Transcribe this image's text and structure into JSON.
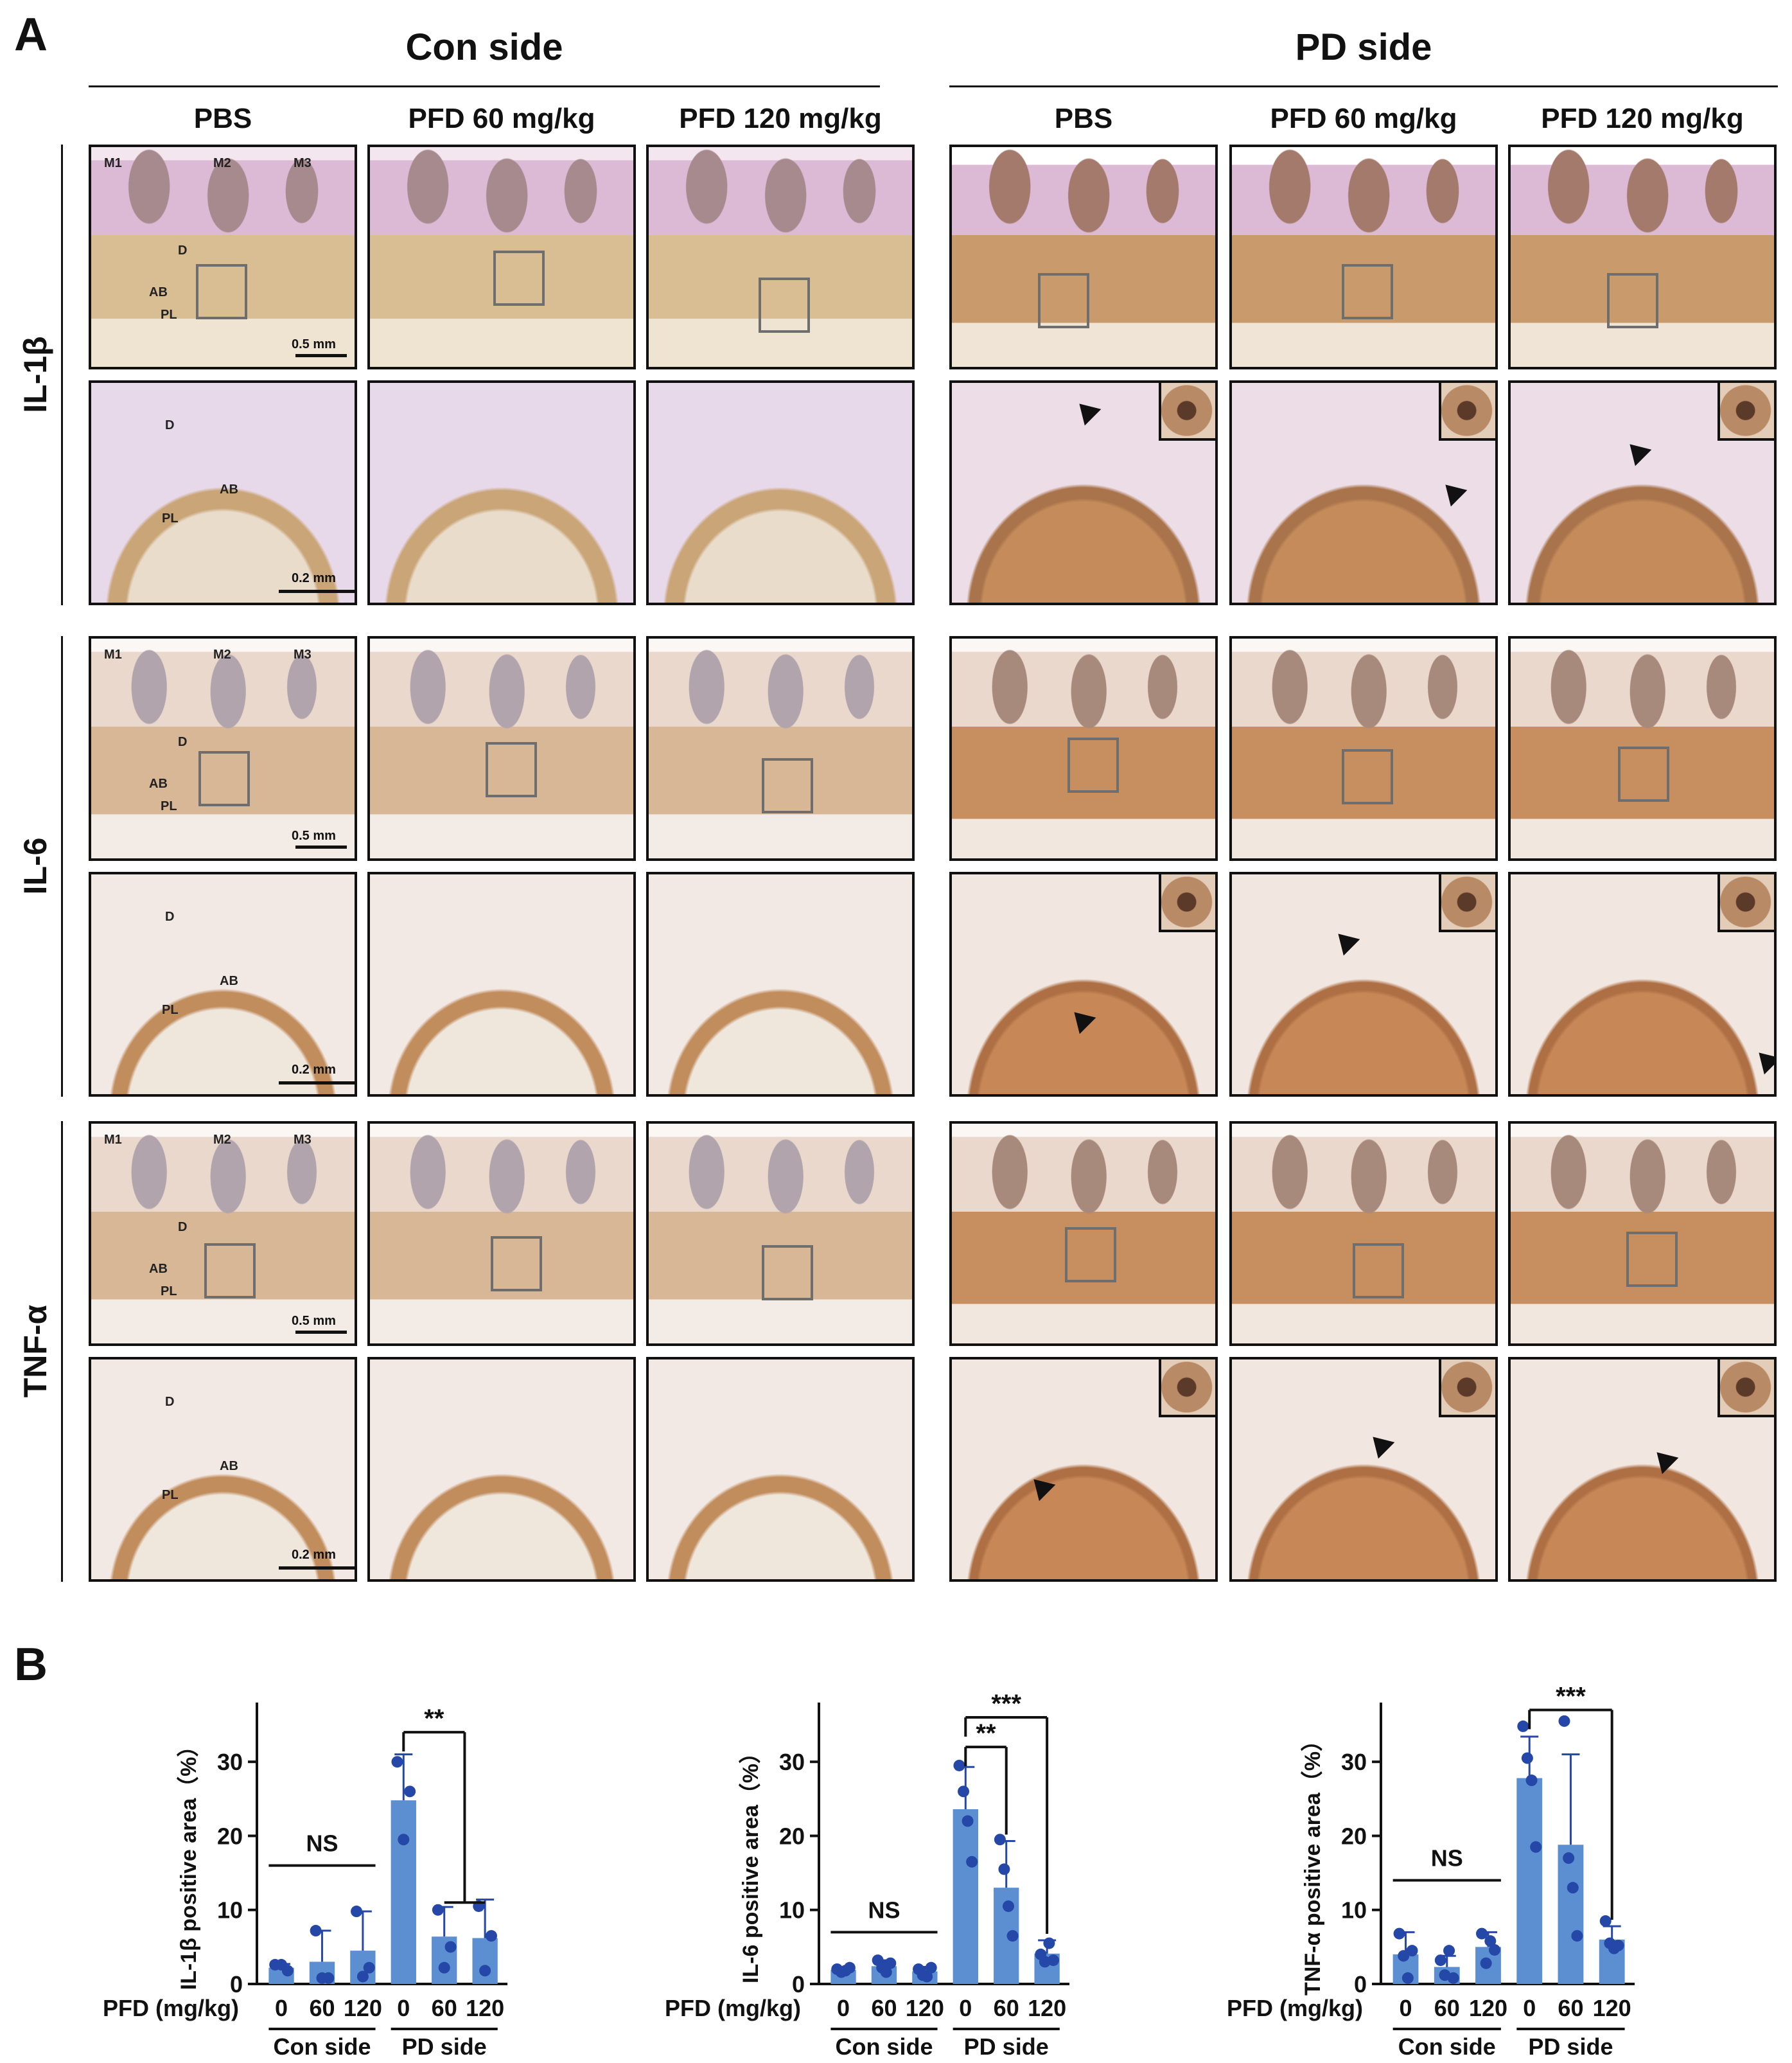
{
  "panel_a": {
    "letter": "A",
    "side_titles": [
      "Con side",
      "PD side"
    ],
    "column_labels": [
      "PBS",
      "PFD 60 mg/kg",
      "PFD 120 mg/kg",
      "PBS",
      "PFD 60 mg/kg",
      "PFD 120 mg/kg"
    ],
    "row_labels": [
      "IL-1β",
      "IL-6",
      "TNF-α"
    ],
    "tooth_labels": [
      "M1",
      "M2",
      "M3"
    ],
    "tissue_labels": [
      "D",
      "AB",
      "PL"
    ],
    "scale_overview": "0.5 mm",
    "scale_zoom": "0.2 mm"
  },
  "panel_b": {
    "letter": "B",
    "x_axis_title": "PFD (mg/kg)",
    "group_labels": [
      "Con side",
      "PD side"
    ]
  },
  "colors": {
    "bar": "#5b8fd1",
    "point": "#2547a8",
    "error": "#2547a8",
    "axis": "#111111"
  },
  "chart_data": [
    {
      "type": "bar",
      "ylabel": "IL-1β positive area（%）",
      "ylim": [
        0,
        38
      ],
      "yticks": [
        0,
        10,
        20,
        30
      ],
      "categories": [
        "0",
        "60",
        "120",
        "0",
        "60",
        "120"
      ],
      "values": [
        2.2,
        3.0,
        4.5,
        24.8,
        6.4,
        6.2
      ],
      "sd": [
        0.5,
        4.2,
        5.3,
        6.2,
        4.0,
        5.2
      ],
      "points": [
        [
          2.6,
          2.6,
          1.8
        ],
        [
          7.2,
          0.8,
          0.8
        ],
        [
          9.8,
          1.0,
          2.2
        ],
        [
          30.0,
          19.5,
          26.0
        ],
        [
          10.0,
          2.2,
          5.0
        ],
        [
          10.5,
          1.8,
          6.5
        ]
      ],
      "significance": [
        {
          "label": "NS",
          "from": 0,
          "to": 2
        },
        {
          "label": "**",
          "from": 3,
          "to": [
            4,
            5
          ]
        }
      ]
    },
    {
      "type": "bar",
      "ylabel": "IL-6 positive area（%）",
      "ylim": [
        0,
        38
      ],
      "yticks": [
        0,
        10,
        20,
        30
      ],
      "categories": [
        "0",
        "60",
        "120",
        "0",
        "60",
        "120"
      ],
      "values": [
        1.9,
        2.4,
        1.7,
        23.6,
        13.0,
        4.1
      ],
      "sd": [
        0.4,
        0.8,
        0.6,
        5.7,
        6.3,
        1.8
      ],
      "points": [
        [
          2.0,
          1.6,
          1.8,
          2.2
        ],
        [
          3.2,
          2.2,
          1.6,
          2.8
        ],
        [
          2.0,
          1.2,
          1.0,
          2.2
        ],
        [
          29.5,
          26.0,
          22.0,
          16.5
        ],
        [
          19.5,
          15.5,
          10.5,
          6.5
        ],
        [
          4.0,
          3.0,
          5.5,
          3.2
        ]
      ],
      "significance": [
        {
          "label": "NS",
          "from": 0,
          "to": 2
        },
        {
          "label": "**",
          "from": 3,
          "to": 4
        },
        {
          "label": "***",
          "from": 3,
          "to": 5
        }
      ]
    },
    {
      "type": "bar",
      "ylabel": "TNF-α positive area（%）",
      "ylim": [
        0,
        38
      ],
      "yticks": [
        0,
        10,
        20,
        30
      ],
      "categories": [
        "0",
        "60",
        "120",
        "0",
        "60",
        "120"
      ],
      "values": [
        4.0,
        2.3,
        5.0,
        27.8,
        18.8,
        6.0
      ],
      "sd": [
        3.0,
        1.5,
        2.0,
        5.6,
        12.2,
        1.8
      ],
      "points": [
        [
          6.8,
          3.8,
          0.8,
          4.5
        ],
        [
          3.2,
          1.2,
          4.5,
          0.8
        ],
        [
          6.8,
          2.8,
          5.8,
          4.6
        ],
        [
          34.8,
          30.5,
          27.5,
          18.5
        ],
        [
          35.5,
          17.0,
          13.0,
          6.5
        ],
        [
          8.5,
          5.5,
          4.8,
          5.2
        ]
      ],
      "significance": [
        {
          "label": "NS",
          "from": 0,
          "to": 2
        },
        {
          "label": "***",
          "from": 3,
          "to": 5
        }
      ]
    }
  ]
}
